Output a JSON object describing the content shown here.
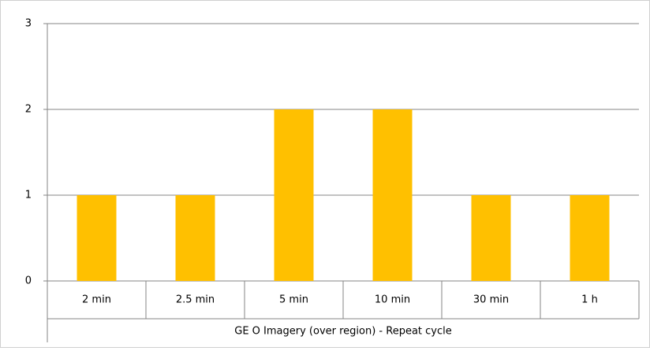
{
  "chart_data": {
    "type": "bar",
    "x_label": "GE O Imagery (over region) - Repeat cycle",
    "categories": [
      "2 min",
      "2.5 min",
      "5 min",
      "10 min",
      "30 min",
      "1 h"
    ],
    "values": [
      1,
      1,
      2,
      2,
      1,
      1
    ],
    "color": "#ffc000",
    "ylim": [
      0,
      3
    ],
    "yticks": [
      0,
      1,
      2,
      3
    ],
    "grid": true
  }
}
